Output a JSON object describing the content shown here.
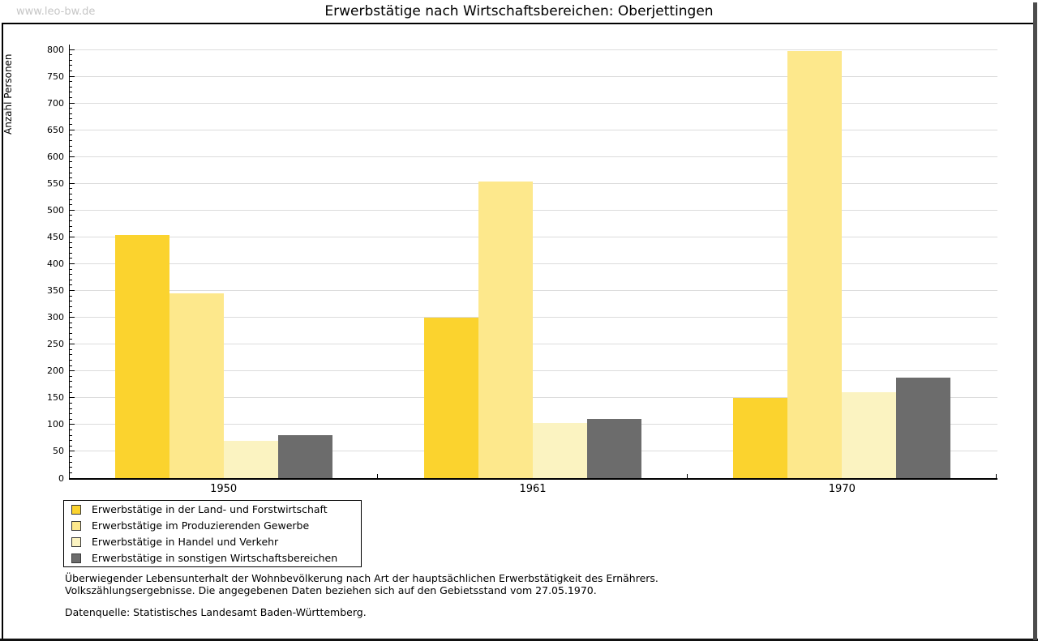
{
  "watermark": "www.leo-bw.de",
  "title": "Erwerbstätige nach Wirtschaftsbereichen: Oberjettingen",
  "chart_data": {
    "type": "bar",
    "title": "Erwerbstätige nach Wirtschaftsbereichen: Oberjettingen",
    "xlabel": "",
    "ylabel": "Anzahl Personen",
    "categories": [
      "1950",
      "1961",
      "1970"
    ],
    "series": [
      {
        "name": "Erwerbstätige in der Land- und Forstwirtschaft",
        "color": "#FBD32E",
        "values": [
          453,
          300,
          150
        ]
      },
      {
        "name": "Erwerbstätige im Produzierenden Gewerbe",
        "color": "#FDE88C",
        "values": [
          345,
          553,
          797
        ]
      },
      {
        "name": "Erwerbstätige in Handel und Verkehr",
        "color": "#FBF3C1",
        "values": [
          70,
          103,
          160
        ]
      },
      {
        "name": "Erwerbstätige in sonstigen Wirtschaftsbereichen",
        "color": "#6C6C6C",
        "values": [
          80,
          111,
          187
        ]
      }
    ],
    "ylim": [
      0,
      800
    ],
    "ytick_step": 50,
    "yticks": [
      0,
      50,
      100,
      150,
      200,
      250,
      300,
      350,
      400,
      450,
      500,
      550,
      600,
      650,
      700,
      750,
      800
    ],
    "minor_tick_step": 10,
    "grid": true,
    "legend_position": "bottom-left",
    "gridline_color": "#dcdcdc"
  },
  "footnotes": {
    "line1": "Überwiegender Lebensunterhalt der Wohnbevölkerung nach Art der hauptsächlichen Erwerbstätigkeit des Ernährers.",
    "line2": "Volkszählungsergebnisse. Die angegebenen Daten beziehen sich auf den Gebietsstand vom 27.05.1970.",
    "source": "Datenquelle: Statistisches Landesamt Baden-Württemberg."
  }
}
